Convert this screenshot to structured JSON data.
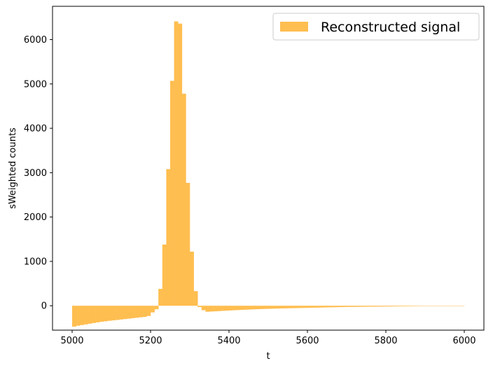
{
  "chart_data": {
    "type": "bar",
    "xlabel": "t",
    "ylabel": "sWeighted counts",
    "xlim": [
      4950,
      6050
    ],
    "ylim": [
      -550,
      6750
    ],
    "xticks": [
      5000,
      5200,
      5400,
      5600,
      5800,
      6000
    ],
    "yticks": [
      0,
      1000,
      2000,
      3000,
      4000,
      5000,
      6000
    ],
    "bin_width": 10,
    "color": "#ffbe50",
    "legend": {
      "placement": "top-right",
      "entries": [
        "Reconstructed signal"
      ]
    },
    "series": [
      {
        "name": "Reconstructed signal",
        "x": [
          5000,
          5010,
          5020,
          5030,
          5040,
          5050,
          5060,
          5070,
          5080,
          5090,
          5100,
          5110,
          5120,
          5130,
          5140,
          5150,
          5160,
          5170,
          5180,
          5190,
          5200,
          5210,
          5220,
          5230,
          5240,
          5250,
          5260,
          5270,
          5280,
          5290,
          5300,
          5310,
          5320,
          5330,
          5340,
          5350,
          5360,
          5370,
          5380,
          5390,
          5400,
          5410,
          5420,
          5430,
          5440,
          5450,
          5460,
          5470,
          5480,
          5490,
          5500,
          5510,
          5520,
          5530,
          5540,
          5550,
          5560,
          5570,
          5580,
          5590,
          5600,
          5610,
          5620,
          5630,
          5640,
          5650,
          5660,
          5670,
          5680,
          5690,
          5700,
          5710,
          5720,
          5730,
          5740,
          5750,
          5760,
          5770,
          5780,
          5790,
          5800,
          5810,
          5820,
          5830,
          5840,
          5850,
          5860,
          5870,
          5880,
          5890,
          5900,
          5910,
          5920,
          5930,
          5940,
          5950,
          5960,
          5970,
          5980,
          5990
        ],
        "values": [
          -470,
          -450,
          -435,
          -420,
          -405,
          -390,
          -375,
          -360,
          -350,
          -340,
          -330,
          -320,
          -310,
          -300,
          -290,
          -280,
          -270,
          -260,
          -250,
          -230,
          -150,
          -80,
          380,
          1380,
          3080,
          5070,
          6410,
          6360,
          4780,
          2770,
          1220,
          330,
          -30,
          -100,
          -135,
          -130,
          -125,
          -120,
          -115,
          -110,
          -105,
          -100,
          -96,
          -92,
          -88,
          -84,
          -80,
          -77,
          -74,
          -71,
          -68,
          -65,
          -62,
          -60,
          -58,
          -56,
          -54,
          -52,
          -50,
          -48,
          -46,
          -44,
          -42,
          -40,
          -38,
          -36,
          -34,
          -32,
          -30,
          -28,
          -27,
          -26,
          -25,
          -24,
          -23,
          -22,
          -21,
          -20,
          -19,
          -18,
          -17,
          -16,
          -15,
          -14,
          -13,
          -12,
          -11,
          -10,
          -9,
          -8,
          -7,
          -6,
          -5,
          -5,
          -4,
          -4,
          -3,
          -3,
          -2,
          -2
        ]
      }
    ]
  }
}
